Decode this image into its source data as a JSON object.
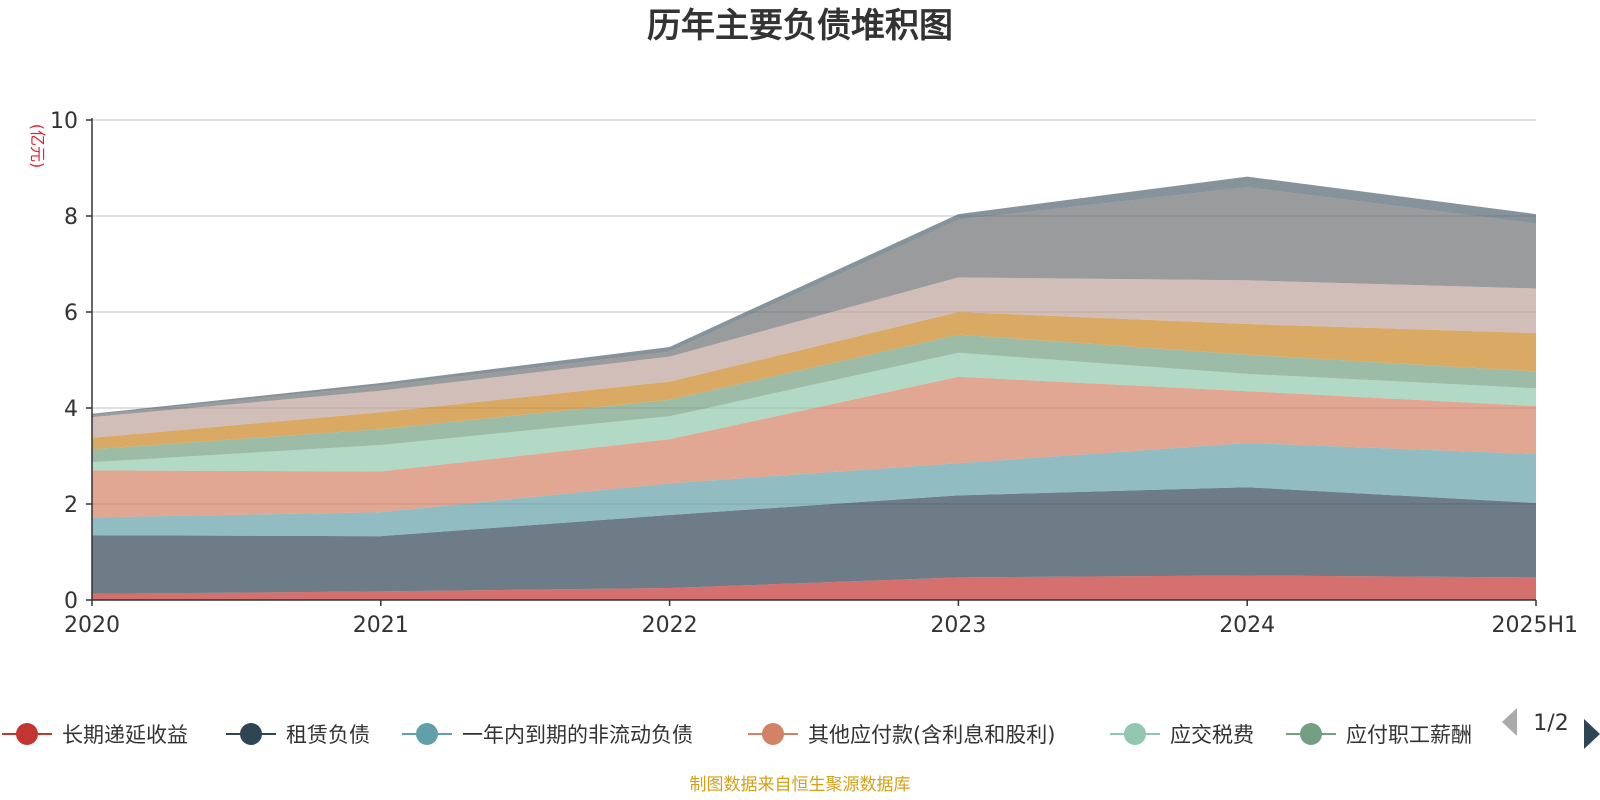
{
  "chart_data": {
    "type": "area",
    "stacked": true,
    "title": "历年主要负债堆积图",
    "y_unit": "(亿元)",
    "categories": [
      "2020",
      "2021",
      "2022",
      "2023",
      "2024",
      "2025H1"
    ],
    "ylim": [
      0,
      10
    ],
    "yticks": [
      0,
      2,
      4,
      6,
      8,
      10
    ],
    "grid": true,
    "series": [
      {
        "name": "长期递延收益",
        "color": "#c23531",
        "values": [
          0.13,
          0.18,
          0.25,
          0.47,
          0.51,
          0.47
        ]
      },
      {
        "name": "租赁负债",
        "color": "#2f4554",
        "values": [
          1.22,
          1.15,
          1.52,
          1.71,
          1.84,
          1.55
        ]
      },
      {
        "name": "一年内到期的非流动负债",
        "color": "#61a0a8",
        "values": [
          0.37,
          0.5,
          0.66,
          0.67,
          0.92,
          1.02
        ]
      },
      {
        "name": "其他应付款(含利息和股利)",
        "color": "#d48265",
        "values": [
          0.98,
          0.85,
          0.92,
          1.8,
          1.08,
          1.0
        ]
      },
      {
        "name": "应交税费",
        "color": "#91c7ae",
        "values": [
          0.17,
          0.55,
          0.48,
          0.5,
          0.36,
          0.37
        ]
      },
      {
        "name": "应付职工薪酬",
        "color": "#749f83",
        "values": [
          0.27,
          0.33,
          0.34,
          0.38,
          0.4,
          0.35
        ]
      },
      {
        "name": "",
        "color": "#ca8622",
        "values": [
          0.24,
          0.35,
          0.38,
          0.47,
          0.64,
          0.8
        ]
      },
      {
        "name": "",
        "color": "#bda29a",
        "values": [
          0.43,
          0.45,
          0.52,
          0.72,
          0.91,
          0.93
        ]
      },
      {
        "name": "",
        "color": "#6e7074",
        "values": [
          0.04,
          0.1,
          0.1,
          1.2,
          1.94,
          1.35
        ]
      },
      {
        "name": "",
        "color": "#546570",
        "values": [
          0.03,
          0.06,
          0.1,
          0.12,
          0.22,
          0.2
        ]
      }
    ],
    "legend": {
      "placement": "bottom",
      "page": "1/2",
      "visible_count": 6
    },
    "source": "制图数据来自恒生聚源数据库"
  }
}
